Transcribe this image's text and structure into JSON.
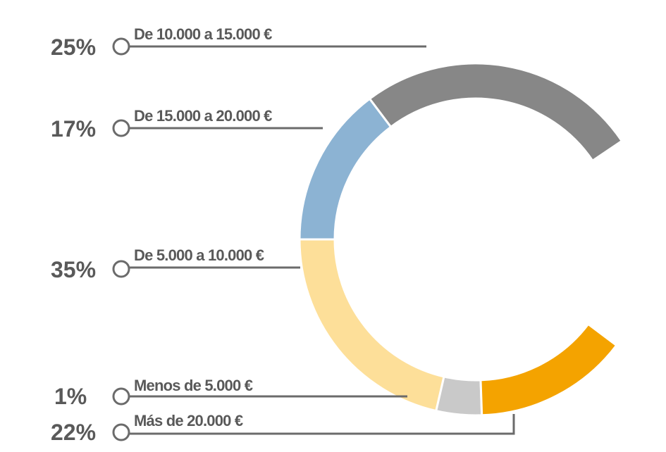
{
  "chart_data": {
    "type": "pie",
    "style": "donut-arc",
    "title": "",
    "segments": [
      {
        "label": "De 10.000 a 15.000 €",
        "percent_label": "25%",
        "value": 25,
        "color": "#878787"
      },
      {
        "label": "De 15.000 a 20.000 €",
        "percent_label": "17%",
        "value": 17,
        "color": "#8cb3d3"
      },
      {
        "label": "De 5.000 a 10.000 €",
        "percent_label": "35%",
        "value": 35,
        "color": "#fddf99"
      },
      {
        "label": "Menos de 5.000 €",
        "percent_label": "1%",
        "value": 1,
        "color": "#c9c9c9"
      },
      {
        "label": "Más de 20.000 €",
        "percent_label": "22%",
        "value": 22,
        "color": "#f4a300"
      }
    ]
  }
}
